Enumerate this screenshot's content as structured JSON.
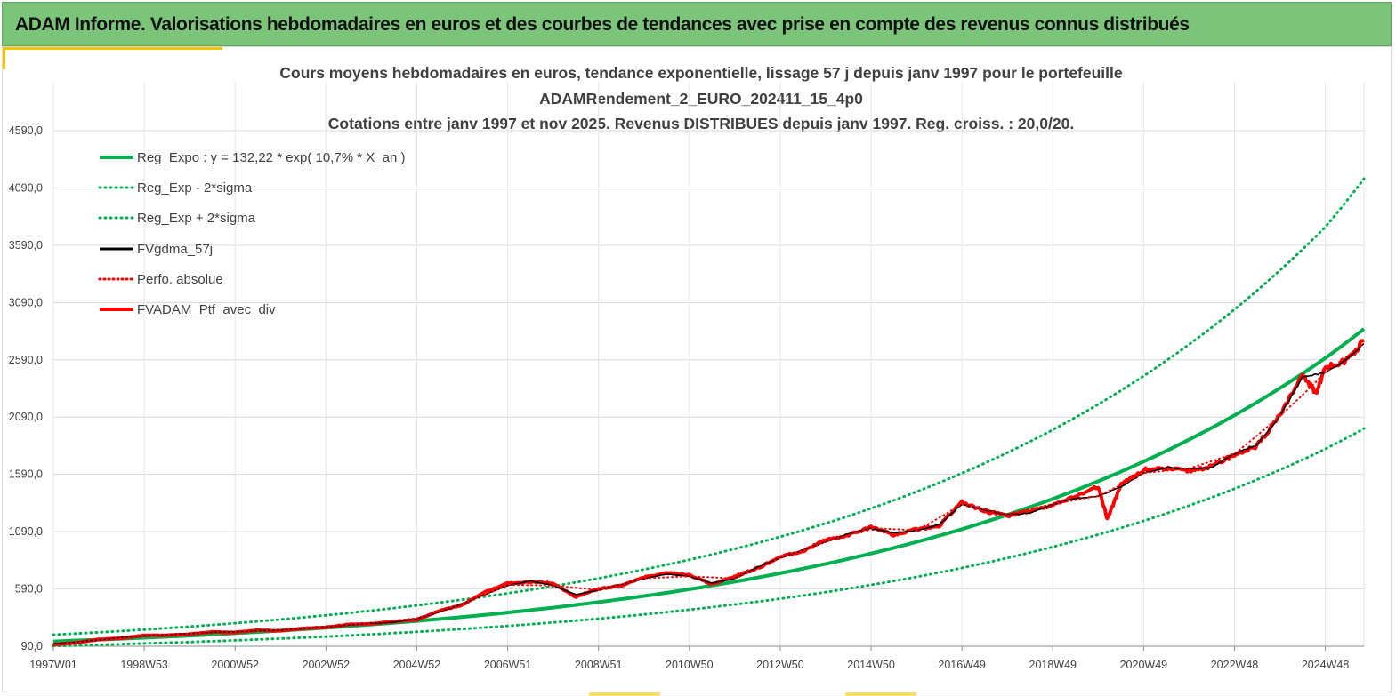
{
  "banner": {
    "title": "ADAM Informe. Valorisations hebdomadaires en euros et des courbes de tendances avec prise en compte des revenus connus distribués"
  },
  "chart_data": {
    "type": "line",
    "title": [
      "Cours moyens hebdomadaires  en euros, tendance exponentielle, lissage 57 j depuis janv 1997 pour le portefeuille",
      "ADAMRendement_2_EURO_202411_15_4p0",
      "Cotations  entre janv 1997 et nov 2025. Revenus DISTRIBUES depuis janv 1997. Reg. croiss. : 20,0/20."
    ],
    "xlabel": "",
    "ylabel": "",
    "x_range": [
      1997.0,
      2025.85
    ],
    "ylim": [
      90,
      4590
    ],
    "y_ticks": [
      "90,0",
      "590,0",
      "1090,0",
      "1590,0",
      "2090,0",
      "2590,0",
      "3090,0",
      "3590,0",
      "4090,0",
      "4590,0"
    ],
    "y_tick_values": [
      90,
      590,
      1090,
      1590,
      2090,
      2590,
      3090,
      3590,
      4090,
      4590
    ],
    "x_ticks": [
      "1997W01",
      "1998W53",
      "2000W52",
      "2002W52",
      "2004W52",
      "2006W51",
      "2008W51",
      "2010W50",
      "2012W50",
      "2014W50",
      "2016W49",
      "2018W49",
      "2020W49",
      "2022W48",
      "2024W48"
    ],
    "x_tick_values": [
      1997.0,
      1999.0,
      2001.0,
      2003.0,
      2005.0,
      2007.0,
      2009.0,
      2011.0,
      2013.0,
      2015.0,
      2017.0,
      2019.0,
      2021.0,
      2023.0,
      2025.0
    ],
    "grid": true,
    "legend_position": "top-left",
    "series": [
      {
        "name": "Reg_Expo : y = 132,22 * exp( 10,7% *  X_an )",
        "color": "#00b050",
        "style": "solid",
        "x": [
          1997.0,
          1999.0,
          2001.0,
          2003.0,
          2005.0,
          2007.0,
          2009.0,
          2011.0,
          2013.0,
          2015.0,
          2017.0,
          2019.0,
          2021.0,
          2023.0,
          2025.0,
          2025.85
        ],
        "y": [
          132,
          164,
          203,
          251,
          310,
          384,
          475,
          587,
          727,
          899,
          1112,
          1376,
          1702,
          2106,
          2605,
          2860
        ]
      },
      {
        "name": "Reg_Exp - 2*sigma",
        "color": "#00b050",
        "style": "dotted",
        "x": [
          1997.0,
          1999.0,
          2001.0,
          2003.0,
          2005.0,
          2007.0,
          2009.0,
          2011.0,
          2013.0,
          2015.0,
          2017.0,
          2019.0,
          2021.0,
          2023.0,
          2025.0,
          2025.85
        ],
        "y": [
          92,
          114,
          141,
          174,
          216,
          267,
          330,
          409,
          505,
          625,
          773,
          957,
          1184,
          1465,
          1812,
          1990
        ]
      },
      {
        "name": "Reg_Exp + 2*sigma",
        "color": "#00b050",
        "style": "dotted",
        "x": [
          1997.0,
          1999.0,
          2001.0,
          2003.0,
          2005.0,
          2007.0,
          2009.0,
          2011.0,
          2013.0,
          2015.0,
          2017.0,
          2019.0,
          2021.0,
          2023.0,
          2025.0,
          2025.85
        ],
        "y": [
          190,
          235,
          291,
          360,
          446,
          552,
          683,
          845,
          1045,
          1293,
          1600,
          1979,
          2449,
          3030,
          3749,
          4170
        ]
      },
      {
        "name": "FVgdma_57j",
        "color": "#000000",
        "style": "solid",
        "x": [
          1997.0,
          1997.5,
          1998.0,
          1998.5,
          1999.0,
          1999.5,
          2000.0,
          2000.5,
          2001.0,
          2001.5,
          2002.0,
          2002.5,
          2003.0,
          2003.5,
          2004.0,
          2004.5,
          2005.0,
          2005.5,
          2006.0,
          2006.5,
          2007.0,
          2007.5,
          2008.0,
          2008.5,
          2009.0,
          2009.5,
          2010.0,
          2010.5,
          2011.0,
          2011.5,
          2012.0,
          2012.5,
          2013.0,
          2013.5,
          2014.0,
          2014.5,
          2015.0,
          2015.5,
          2016.0,
          2016.5,
          2017.0,
          2017.5,
          2018.0,
          2018.5,
          2019.0,
          2019.5,
          2020.0,
          2020.5,
          2021.0,
          2021.5,
          2022.0,
          2022.5,
          2023.0,
          2023.5,
          2024.0,
          2024.5,
          2025.0,
          2025.5,
          2025.85
        ],
        "y": [
          110,
          125,
          145,
          165,
          180,
          190,
          200,
          210,
          215,
          225,
          230,
          245,
          260,
          275,
          290,
          300,
          330,
          390,
          460,
          540,
          620,
          660,
          620,
          540,
          580,
          630,
          680,
          720,
          700,
          640,
          680,
          780,
          860,
          930,
          1000,
          1070,
          1120,
          1080,
          1100,
          1150,
          1330,
          1280,
          1240,
          1250,
          1330,
          1380,
          1400,
          1480,
          1600,
          1650,
          1640,
          1650,
          1770,
          1850,
          2100,
          2440,
          2480,
          2600,
          2730
        ]
      },
      {
        "name": "Perfo. absolue",
        "color": "#ff0000",
        "style": "dotted",
        "x": [
          1997.0,
          1998.0,
          1999.0,
          2000.0,
          2001.0,
          2002.0,
          2003.0,
          2004.0,
          2005.0,
          2006.0,
          2007.0,
          2008.0,
          2009.0,
          2010.0,
          2011.0,
          2012.0,
          2013.0,
          2014.0,
          2015.0,
          2016.0,
          2017.0,
          2018.0,
          2019.0,
          2020.0,
          2021.0,
          2022.0,
          2023.0,
          2024.0,
          2025.0,
          2025.85
        ],
        "y": [
          105,
          145,
          180,
          200,
          215,
          232,
          262,
          292,
          335,
          465,
          625,
          620,
          582,
          683,
          700,
          682,
          862,
          1002,
          1122,
          1102,
          1332,
          1242,
          1332,
          1402,
          1602,
          1642,
          1772,
          2102,
          2482,
          2735
        ]
      },
      {
        "name": "FVADAM_Ptf_avec_div",
        "color": "#ff0000",
        "style": "solid",
        "x": [
          1997.0,
          1997.5,
          1998.0,
          1998.5,
          1999.0,
          1999.5,
          2000.0,
          2000.5,
          2001.0,
          2001.5,
          2002.0,
          2002.5,
          2003.0,
          2003.5,
          2004.0,
          2004.5,
          2005.0,
          2005.5,
          2006.0,
          2006.5,
          2007.0,
          2007.5,
          2008.0,
          2008.5,
          2009.0,
          2009.5,
          2010.0,
          2010.5,
          2011.0,
          2011.5,
          2012.0,
          2012.5,
          2013.0,
          2013.5,
          2014.0,
          2014.5,
          2015.0,
          2015.5,
          2016.0,
          2016.5,
          2017.0,
          2017.5,
          2018.0,
          2018.5,
          2019.0,
          2019.5,
          2020.0,
          2020.2,
          2020.5,
          2021.0,
          2021.5,
          2022.0,
          2022.5,
          2023.0,
          2023.5,
          2024.0,
          2024.5,
          2024.8,
          2025.0,
          2025.5,
          2025.85
        ],
        "y": [
          105,
          120,
          150,
          160,
          185,
          185,
          195,
          215,
          210,
          230,
          225,
          245,
          255,
          280,
          285,
          305,
          320,
          400,
          450,
          560,
          640,
          650,
          640,
          520,
          590,
          620,
          690,
          730,
          710,
          630,
          700,
          770,
          870,
          920,
          1020,
          1060,
          1130,
          1060,
          1110,
          1140,
          1350,
          1270,
          1230,
          1270,
          1320,
          1400,
          1480,
          1200,
          1500,
          1630,
          1640,
          1620,
          1660,
          1760,
          1840,
          2110,
          2450,
          2300,
          2520,
          2590,
          2760
        ]
      }
    ]
  }
}
